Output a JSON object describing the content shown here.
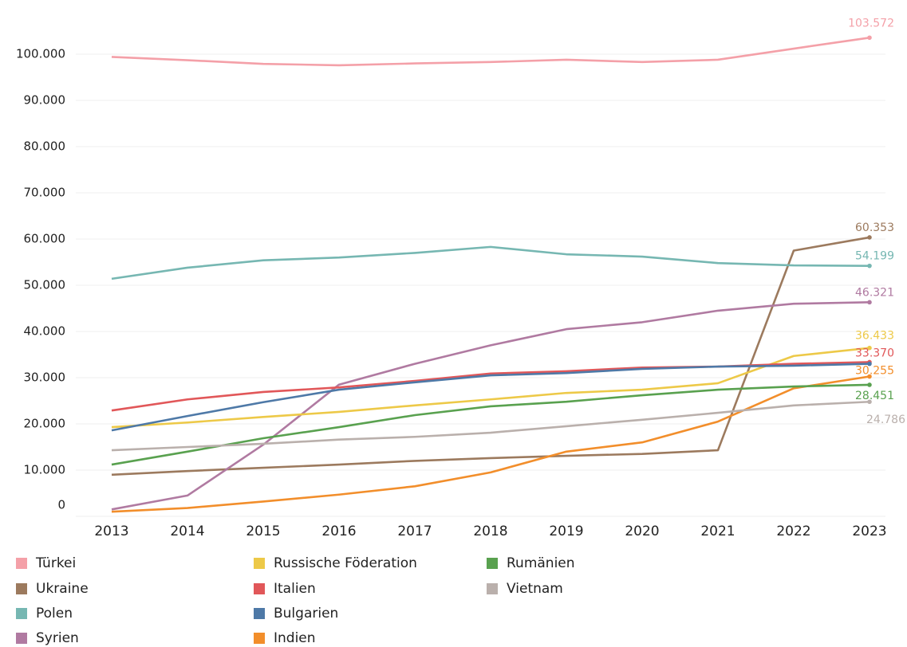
{
  "chart_data": {
    "type": "line",
    "x": [
      2013,
      2014,
      2015,
      2016,
      2017,
      2018,
      2019,
      2020,
      2021,
      2022,
      2023
    ],
    "xlim": [
      2013,
      2023
    ],
    "xticks": [
      2013,
      2014,
      2015,
      2016,
      2017,
      2018,
      2019,
      2020,
      2021,
      2022,
      2023
    ],
    "ylim": [
      0,
      110000
    ],
    "yticks": [
      0,
      {
        "value": 10000,
        "label": "10.000"
      },
      {
        "value": 20000,
        "label": "20.000"
      },
      {
        "value": 30000,
        "label": "30.000"
      },
      {
        "value": 40000,
        "label": "40.000"
      },
      {
        "value": 50000,
        "label": "50.000"
      },
      {
        "value": 60000,
        "label": "60.000"
      },
      {
        "value": 70000,
        "label": "70.000"
      },
      {
        "value": 80000,
        "label": "80.000"
      },
      {
        "value": 90000,
        "label": "90.000"
      },
      {
        "value": 100000,
        "label": "100.000"
      }
    ],
    "grid": true,
    "legend": "bottom",
    "series": [
      {
        "name": "Türkei",
        "color": "#f4a0a8",
        "values": [
          99400,
          98700,
          97900,
          97600,
          98000,
          98300,
          98800,
          98300,
          98800,
          101200,
          103572
        ],
        "value_labels": [
          null,
          null,
          null,
          null,
          null,
          null,
          null,
          null,
          null,
          null,
          "103.572"
        ]
      },
      {
        "name": "Ukraine",
        "color": "#9c7a5e",
        "values": [
          9000,
          9800,
          10500,
          11200,
          12000,
          12600,
          13100,
          13500,
          14300,
          57500,
          60353
        ],
        "value_labels": [
          null,
          null,
          null,
          null,
          null,
          null,
          null,
          null,
          null,
          null,
          "60.353"
        ]
      },
      {
        "name": "Polen",
        "color": "#76b7b2",
        "values": [
          51400,
          53800,
          55400,
          56000,
          57000,
          58300,
          56700,
          56200,
          54800,
          54300,
          54199
        ],
        "value_labels": [
          null,
          null,
          null,
          null,
          null,
          null,
          null,
          null,
          null,
          null,
          "54.199"
        ]
      },
      {
        "name": "Syrien",
        "color": "#b07aa1",
        "values": [
          1500,
          4500,
          15500,
          28500,
          33000,
          37000,
          40500,
          42000,
          44500,
          46000,
          46321
        ],
        "value_labels": [
          null,
          null,
          null,
          null,
          null,
          null,
          null,
          null,
          null,
          null,
          "46.321"
        ]
      },
      {
        "name": "Russische Föderation",
        "color": "#edc948",
        "values": [
          19300,
          20300,
          21500,
          22600,
          24000,
          25300,
          26700,
          27400,
          28800,
          34700,
          36433
        ],
        "value_labels": [
          null,
          null,
          null,
          null,
          null,
          null,
          null,
          null,
          null,
          null,
          "36.433"
        ]
      },
      {
        "name": "Italien",
        "color": "#e15759",
        "values": [
          22900,
          25300,
          26900,
          27900,
          29300,
          30900,
          31400,
          32200,
          32400,
          33000,
          33370
        ],
        "value_labels": [
          null,
          null,
          null,
          null,
          null,
          null,
          null,
          null,
          null,
          null,
          "33.370"
        ]
      },
      {
        "name": "Bulgarien",
        "color": "#4e79a7",
        "values": [
          18600,
          21700,
          24700,
          27400,
          29000,
          30500,
          31000,
          31900,
          32400,
          32600,
          33000
        ]
      },
      {
        "name": "Indien",
        "color": "#f28e2b",
        "values": [
          1000,
          1800,
          3200,
          4700,
          6500,
          9500,
          14000,
          16000,
          20500,
          27700,
          30255
        ],
        "value_labels": [
          null,
          null,
          null,
          null,
          null,
          null,
          null,
          null,
          null,
          null,
          "30.255"
        ]
      },
      {
        "name": "Rumänien",
        "color": "#59a14f",
        "values": [
          11200,
          14000,
          16900,
          19300,
          21900,
          23800,
          24800,
          26200,
          27400,
          28100,
          28451
        ],
        "value_labels": [
          null,
          null,
          null,
          null,
          null,
          null,
          null,
          null,
          null,
          null,
          "28.451"
        ]
      },
      {
        "name": "Vietnam",
        "color": "#bab0ac",
        "values": [
          14300,
          15000,
          15700,
          16600,
          17200,
          18100,
          19500,
          20900,
          22400,
          24000,
          24786
        ],
        "value_labels": [
          null,
          null,
          null,
          null,
          null,
          null,
          null,
          null,
          null,
          null,
          "24.786"
        ]
      }
    ]
  }
}
